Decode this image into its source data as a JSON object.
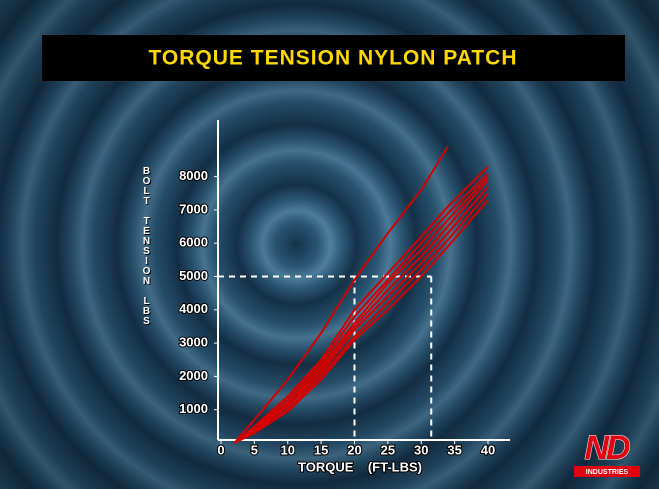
{
  "chart_data": {
    "type": "line",
    "title": "TORQUE TENSION NYLON PATCH",
    "x_label": "TORQUE    (FT-LBS)",
    "y_label": "BOLT  TENSION  LBS",
    "xlim": [
      0,
      43.3
    ],
    "ylim": [
      0,
      9700
    ],
    "xticks": [
      0,
      5,
      10,
      15,
      20,
      25,
      30,
      35,
      40
    ],
    "yticks": [
      1000,
      2000,
      3000,
      4000,
      5000,
      6000,
      7000,
      8000
    ],
    "reference": {
      "y": 5000,
      "x": [
        20,
        31.5
      ]
    },
    "x": [
      2,
      5,
      10,
      15,
      20,
      25,
      30,
      34,
      40
    ],
    "series": [
      {
        "color": "#d40000",
        "values": [
          0,
          700,
          1900,
          3300,
          4900,
          6300,
          7600,
          8900,
          null
        ]
      },
      {
        "color": "#d40000",
        "values": [
          0,
          500,
          1400,
          2500,
          4000,
          5100,
          6200,
          7100,
          8300
        ]
      },
      {
        "color": "#d40000",
        "values": [
          0,
          450,
          1300,
          2400,
          3800,
          4900,
          6000,
          6900,
          8100
        ]
      },
      {
        "color": "#d40000",
        "values": [
          0,
          400,
          1200,
          2300,
          3600,
          4800,
          5800,
          6700,
          8000
        ]
      },
      {
        "color": "#d40000",
        "values": [
          0,
          400,
          1150,
          2200,
          3500,
          4600,
          5600,
          6500,
          7900
        ]
      },
      {
        "color": "#d40000",
        "values": [
          0,
          350,
          1100,
          2100,
          3400,
          4400,
          5400,
          6300,
          7700
        ]
      },
      {
        "color": "#d40000",
        "values": [
          0,
          300,
          1000,
          2000,
          3200,
          4200,
          5200,
          6100,
          7500
        ]
      },
      {
        "color": "#d40000",
        "values": [
          0,
          300,
          950,
          1900,
          3100,
          4000,
          5000,
          5900,
          7300
        ]
      }
    ]
  },
  "logo": {
    "mark": "ND",
    "name": "INDUSTRIES"
  }
}
